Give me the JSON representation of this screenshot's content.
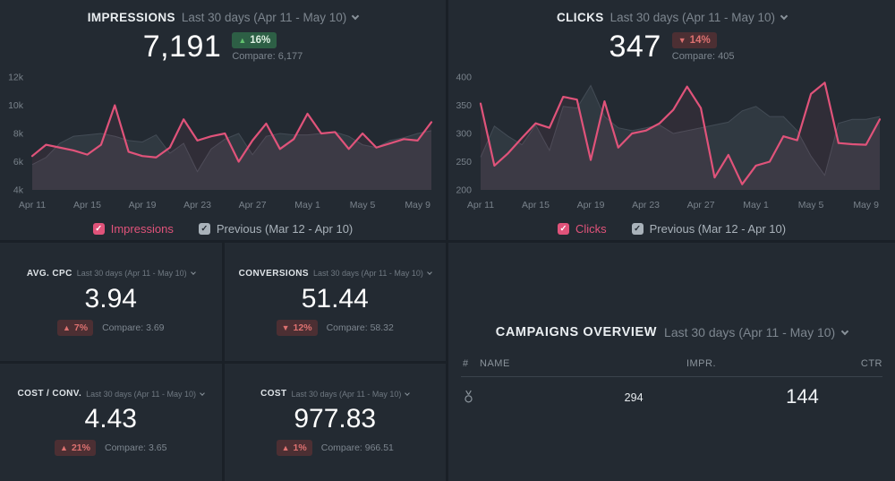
{
  "colors": {
    "accent_pink": "#e0537a",
    "previous_gray": "#3d454e",
    "positive_green": "#62c16e",
    "negative_red": "#dd7170",
    "panel_bg": "#232a32",
    "page_bg": "#1a2027"
  },
  "impressions": {
    "title": "IMPRESSIONS",
    "period": "Last 30 days (Apr 11 - May 10)",
    "value": "7,191",
    "delta_arrow": "▲",
    "delta_value": "16%",
    "compare": "Compare: 6,177",
    "legend": {
      "series1": "Impressions",
      "series2": "Previous (Mar 12 - Apr 10)"
    }
  },
  "clicks": {
    "title": "CLICKS",
    "period": "Last 30 days (Apr 11 - May 10)",
    "value": "347",
    "delta_arrow": "▼",
    "delta_value": "14%",
    "compare": "Compare: 405",
    "legend": {
      "series1": "Clicks",
      "series2": "Previous (Mar 12 - Apr 10)"
    }
  },
  "kpis": [
    {
      "title": "AVG. CPC",
      "period": "Last 30 days (Apr 11 - May 10)",
      "value": "3.94",
      "delta_arrow": "▲",
      "delta_value": "7%",
      "compare": "Compare: 3.69"
    },
    {
      "title": "CONVERSIONS",
      "period": "Last 30 days (Apr 11 - May 10)",
      "value": "51.44",
      "delta_arrow": "▼",
      "delta_value": "12%",
      "compare": "Compare: 58.32"
    },
    {
      "title": "COST / CONV.",
      "period": "Last 30 days (Apr 11 - May 10)",
      "value": "4.43",
      "delta_arrow": "▲",
      "delta_value": "21%",
      "compare": "Compare: 3.65"
    },
    {
      "title": "COST",
      "period": "Last 30 days (Apr 11 - May 10)",
      "value": "977.83",
      "delta_arrow": "▲",
      "delta_value": "1%",
      "compare": "Compare: 966.51"
    }
  ],
  "campaigns": {
    "title": "CAMPAIGNS OVERVIEW",
    "period": "Last 30 days (Apr 11 - May 10)",
    "columns": {
      "num": "#",
      "name": "NAME",
      "impr": "IMPR.",
      "ctr": "CTR"
    },
    "rows": [
      {
        "icon": "medal-icon",
        "impr": "294",
        "ctr": "144"
      }
    ]
  },
  "chart_data": [
    {
      "type": "line",
      "title": "IMPRESSIONS",
      "x_ticks": [
        "Apr 11",
        "Apr 15",
        "Apr 19",
        "Apr 23",
        "Apr 27",
        "May 1",
        "May 5",
        "May 9"
      ],
      "y_ticks": [
        "12k",
        "10k",
        "8k",
        "6k",
        "4k"
      ],
      "ylim": [
        4000,
        12000
      ],
      "grid": false,
      "legend_position": "bottom",
      "series": [
        {
          "name": "Impressions",
          "color": "#e0537a",
          "values": [
            6400,
            7200,
            7000,
            6800,
            6500,
            7200,
            10000,
            6700,
            6400,
            6300,
            7000,
            9000,
            7500,
            7800,
            8000,
            6000,
            7500,
            8700,
            6900,
            7600,
            9400,
            8000,
            8100,
            6900,
            8000,
            7000,
            7300,
            7600,
            7500,
            8800
          ]
        },
        {
          "name": "Previous (Mar 12 - Apr 10)",
          "color": "#3d454e",
          "values": [
            5800,
            6300,
            7300,
            7800,
            7900,
            8000,
            7800,
            7500,
            7400,
            7900,
            6600,
            7300,
            5300,
            6900,
            7600,
            8000,
            6500,
            7800,
            8000,
            7900,
            7900,
            8000,
            8100,
            7800,
            7200,
            7000,
            7500,
            7700,
            8000,
            8200
          ]
        }
      ]
    },
    {
      "type": "line",
      "title": "CLICKS",
      "x_ticks": [
        "Apr 11",
        "Apr 15",
        "Apr 19",
        "Apr 23",
        "Apr 27",
        "May 1",
        "May 5",
        "May 9"
      ],
      "y_ticks": [
        "400",
        "350",
        "300",
        "250",
        "200"
      ],
      "ylim": [
        200,
        400
      ],
      "grid": false,
      "legend_position": "bottom",
      "series": [
        {
          "name": "Clicks",
          "color": "#e0537a",
          "values": [
            353,
            243,
            265,
            292,
            318,
            310,
            365,
            360,
            253,
            357,
            275,
            300,
            305,
            318,
            342,
            383,
            345,
            222,
            262,
            210,
            243,
            250,
            295,
            288,
            370,
            390,
            283,
            281,
            280,
            325
          ]
        },
        {
          "name": "Previous (Mar 12 - Apr 10)",
          "color": "#3d454e",
          "values": [
            258,
            313,
            295,
            280,
            315,
            270,
            348,
            345,
            385,
            330,
            310,
            305,
            310,
            315,
            300,
            305,
            310,
            315,
            320,
            340,
            348,
            330,
            330,
            305,
            260,
            226,
            318,
            325,
            325,
            330
          ]
        }
      ]
    }
  ]
}
